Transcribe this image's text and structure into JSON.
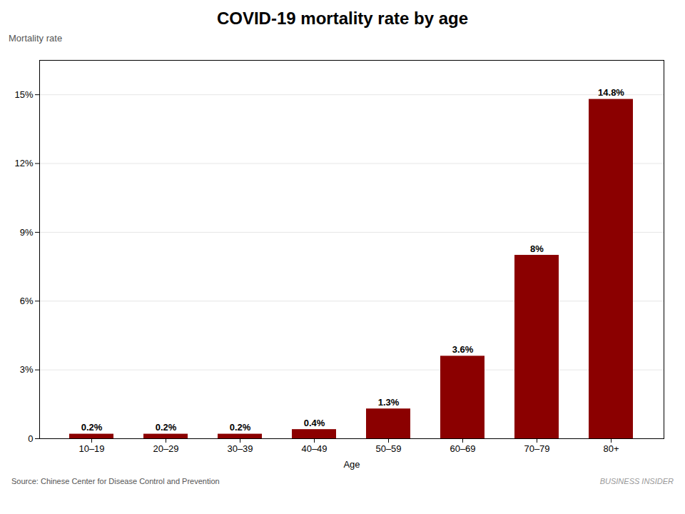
{
  "chart_data": {
    "type": "bar",
    "title": "COVID-19 mortality rate by age",
    "ylabel": "Mortality rate",
    "xlabel": "Age",
    "categories": [
      "10–19",
      "20–29",
      "30–39",
      "40–49",
      "50–59",
      "60–69",
      "70–79",
      "80+"
    ],
    "values": [
      0.2,
      0.2,
      0.2,
      0.4,
      1.3,
      3.6,
      8.0,
      14.8
    ],
    "value_labels": [
      "0.2%",
      "0.2%",
      "0.2%",
      "0.4%",
      "1.3%",
      "3.6%",
      "8%",
      "14.8%"
    ],
    "data_labels": true,
    "color": "#8B0000",
    "ylim": [
      0,
      16.5
    ],
    "yticks": [
      0,
      {
        "value": 3,
        "label": "3%"
      },
      {
        "value": 6,
        "label": "6%"
      },
      {
        "value": 9,
        "label": "9%"
      },
      {
        "value": 12,
        "label": "12%"
      },
      {
        "value": 15,
        "label": "15%"
      }
    ],
    "grid": true,
    "annotations": [
      "Source: Chinese Center for Disease Control and Prevention",
      "BUSINESS INSIDER"
    ]
  }
}
